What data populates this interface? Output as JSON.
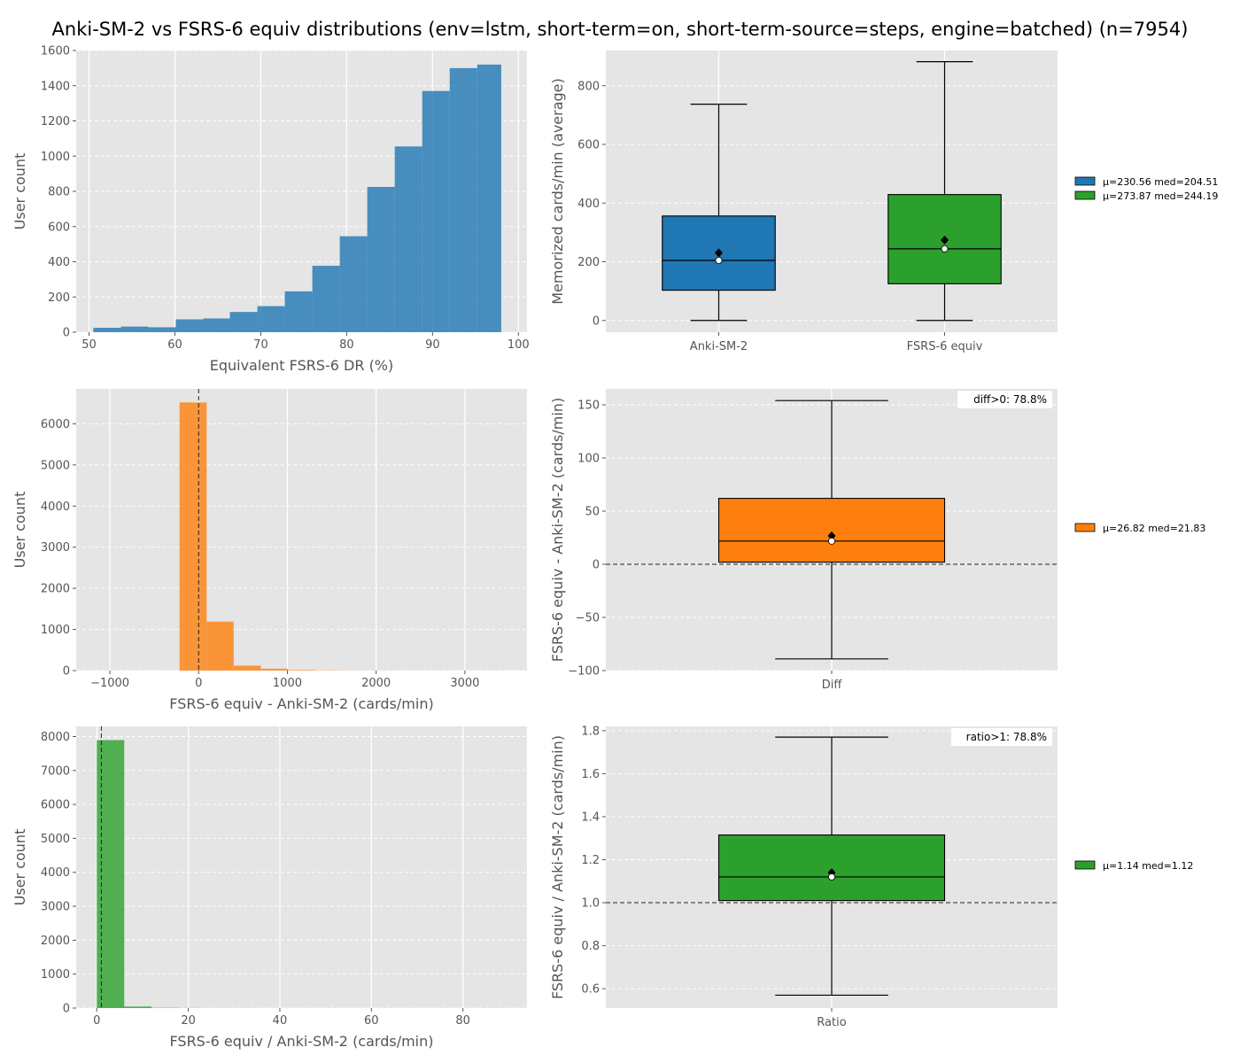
{
  "title": "Anki-SM-2 vs FSRS-6 equiv distributions (env=lstm, short-term=on, short-term-source=steps, engine=batched) (n=7954)",
  "colors": {
    "blue": "#1f77b4",
    "orange": "#ff7f0e",
    "green": "#2ca02c",
    "axes_bg": "#e5e5e5",
    "grid": "#ffffff"
  },
  "chart_data": [
    {
      "id": "hist_dr",
      "type": "bar",
      "xlabel": "Equivalent FSRS-6 DR (%)",
      "ylabel": "User count",
      "xlim": [
        48.5,
        101
      ],
      "ylim": [
        0,
        1600
      ],
      "xticks": [
        50,
        60,
        70,
        80,
        90,
        100
      ],
      "yticks": [
        0,
        200,
        400,
        600,
        800,
        1000,
        1200,
        1400,
        1600
      ],
      "bin_edges": [
        50.5,
        53.7,
        56.9,
        60.1,
        63.3,
        66.4,
        69.6,
        72.8,
        76.0,
        79.2,
        82.4,
        85.6,
        88.8,
        92.0,
        95.2,
        98.0
      ],
      "values": [
        25,
        32,
        28,
        73,
        78,
        115,
        148,
        232,
        377,
        545,
        825,
        1055,
        1370,
        1500,
        1520
      ],
      "color": "#1f77b4"
    },
    {
      "id": "box_memorized",
      "type": "box",
      "ylabel": "Memorized cards/min (average)",
      "categories": [
        "Anki-SM-2",
        "FSRS-6 equiv"
      ],
      "ylim": [
        -40,
        920
      ],
      "yticks": [
        0,
        200,
        400,
        600,
        800
      ],
      "boxes": [
        {
          "whislo": 0,
          "q1": 103,
          "median": 204.51,
          "q3": 356,
          "whishi": 737,
          "mean": 230.56,
          "color": "#1f77b4"
        },
        {
          "whislo": 0,
          "q1": 125,
          "median": 244.19,
          "q3": 429,
          "whishi": 882,
          "mean": 273.87,
          "color": "#2ca02c"
        }
      ],
      "legend": [
        "μ=230.56  med=204.51",
        "μ=273.87  med=244.19"
      ]
    },
    {
      "id": "hist_diff",
      "type": "bar",
      "xlabel": "FSRS-6 equiv - Anki-SM-2 (cards/min)",
      "ylabel": "User count",
      "xlim": [
        -1380,
        3700
      ],
      "ylim": [
        0,
        6850
      ],
      "xticks": [
        -1000,
        0,
        1000,
        2000,
        3000
      ],
      "yticks": [
        0,
        1000,
        2000,
        3000,
        4000,
        5000,
        6000
      ],
      "bin_edges": [
        -215,
        90,
        395,
        700,
        1005,
        1310,
        1615,
        1920,
        2225,
        2530,
        2835,
        3140,
        3445
      ],
      "values": [
        6520,
        1190,
        120,
        45,
        15,
        5,
        3,
        2,
        1,
        1,
        0,
        1
      ],
      "refline_x": 0,
      "color": "#ff7f0e"
    },
    {
      "id": "box_diff",
      "type": "box",
      "ylabel": "FSRS-6 equiv - Anki-SM-2 (cards/min)",
      "categories": [
        "Diff"
      ],
      "ylim": [
        -100,
        165
      ],
      "yticks": [
        -100,
        -50,
        0,
        50,
        100,
        150
      ],
      "boxes": [
        {
          "whislo": -89,
          "q1": 2,
          "median": 21.83,
          "q3": 62,
          "whishi": 154,
          "mean": 26.82,
          "color": "#ff7f0e"
        }
      ],
      "refline_y": 0,
      "annotation": "diff>0: 78.8%",
      "legend": [
        "μ=26.82  med=21.83"
      ]
    },
    {
      "id": "hist_ratio",
      "type": "bar",
      "xlabel": "FSRS-6 equiv / Anki-SM-2 (cards/min)",
      "ylabel": "User count",
      "xlim": [
        -4.5,
        94
      ],
      "ylim": [
        0,
        8300
      ],
      "xticks": [
        0,
        20,
        40,
        60,
        80
      ],
      "yticks": [
        0,
        1000,
        2000,
        3000,
        4000,
        5000,
        6000,
        7000,
        8000
      ],
      "bin_edges": [
        0,
        6,
        12,
        18,
        24,
        30,
        36,
        42,
        48,
        54,
        60,
        66,
        72,
        78,
        84,
        90
      ],
      "values": [
        7895,
        45,
        8,
        3,
        1,
        1,
        0,
        0,
        0,
        0,
        0,
        0,
        0,
        0,
        1
      ],
      "refline_x": 1,
      "color": "#2ca02c"
    },
    {
      "id": "box_ratio",
      "type": "box",
      "ylabel": "FSRS-6 equiv / Anki-SM-2 (cards/min)",
      "categories": [
        "Ratio"
      ],
      "ylim": [
        0.51,
        1.82
      ],
      "yticks": [
        0.6,
        0.8,
        1.0,
        1.2,
        1.4,
        1.6,
        1.8
      ],
      "boxes": [
        {
          "whislo": 0.57,
          "q1": 1.01,
          "median": 1.12,
          "q3": 1.315,
          "whishi": 1.77,
          "mean": 1.14,
          "color": "#2ca02c"
        }
      ],
      "refline_y": 1.0,
      "annotation": "ratio>1: 78.8%",
      "legend": [
        "μ=1.14  med=1.12"
      ]
    }
  ]
}
